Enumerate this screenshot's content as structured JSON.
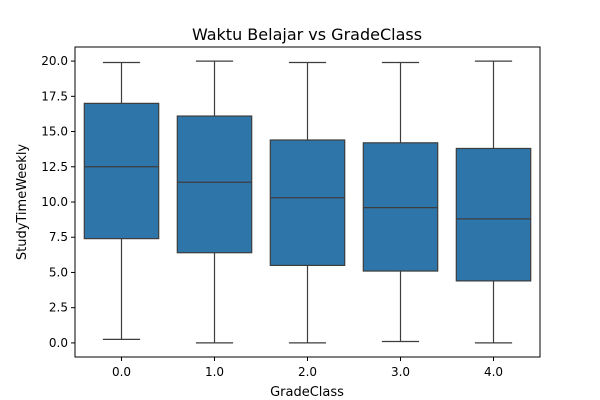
{
  "chart_data": {
    "type": "box",
    "title": "Waktu Belajar vs GradeClass",
    "xlabel": "GradeClass",
    "ylabel": "StudyTimeWeekly",
    "categories": [
      "0.0",
      "1.0",
      "2.0",
      "3.0",
      "4.0"
    ],
    "ylim": [
      -1.0,
      21.0
    ],
    "yticks": [
      0.0,
      2.5,
      5.0,
      7.5,
      10.0,
      12.5,
      15.0,
      17.5,
      20.0
    ],
    "ytick_labels": [
      "0.0",
      "2.5",
      "5.0",
      "7.5",
      "10.0",
      "12.5",
      "15.0",
      "17.5",
      "20.0"
    ],
    "box_color": "#2e75aa",
    "line_color": "#3d3d3d",
    "grid": false,
    "boxes": [
      {
        "category": "0.0",
        "min": 0.25,
        "q1": 7.4,
        "median": 12.5,
        "q3": 17.0,
        "max": 19.9
      },
      {
        "category": "1.0",
        "min": 0.0,
        "q1": 6.4,
        "median": 11.4,
        "q3": 16.1,
        "max": 20.0
      },
      {
        "category": "2.0",
        "min": 0.0,
        "q1": 5.5,
        "median": 10.3,
        "q3": 14.4,
        "max": 19.9
      },
      {
        "category": "3.0",
        "min": 0.1,
        "q1": 5.1,
        "median": 9.6,
        "q3": 14.2,
        "max": 19.9
      },
      {
        "category": "4.0",
        "min": 0.0,
        "q1": 4.4,
        "median": 8.8,
        "q3": 13.8,
        "max": 20.0
      }
    ]
  }
}
